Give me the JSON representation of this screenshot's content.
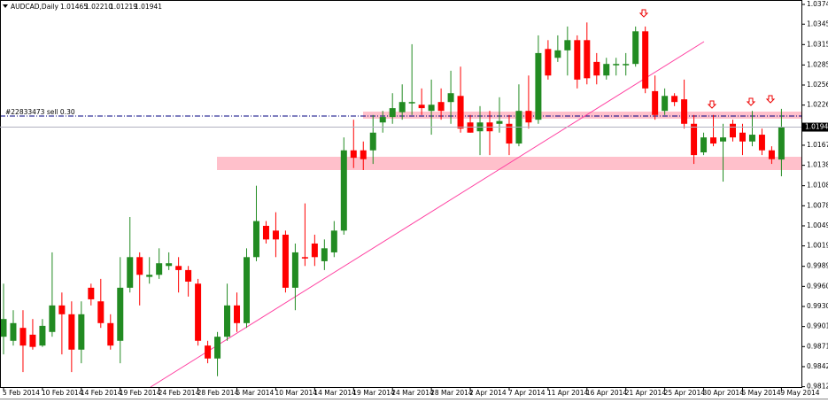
{
  "chart_data": {
    "type": "candlestick",
    "title": "AUDCAD,Daily",
    "last_bar_labels": [
      "1.01465",
      "1.02210",
      "1.01219",
      "1.01941"
    ],
    "annotations": {
      "order": "#22833473 sell 0.30"
    },
    "categories": [
      "5 Feb 2014",
      null,
      null,
      null,
      "10 Feb 2014",
      null,
      null,
      null,
      "14 Feb 2014",
      null,
      null,
      null,
      "19 Feb 2014",
      null,
      null,
      null,
      "24 Feb 2014",
      null,
      null,
      null,
      "28 Feb 2014",
      null,
      null,
      null,
      "5 Mar 2014",
      null,
      null,
      null,
      "10 Mar 2014",
      null,
      null,
      null,
      "14 Mar 2014",
      null,
      null,
      null,
      "19 Mar 2014",
      null,
      null,
      null,
      "24 Mar 2014",
      null,
      null,
      null,
      "28 Mar 2014",
      null,
      null,
      null,
      "2 Apr 2014",
      null,
      null,
      null,
      "7 Apr 2014",
      null,
      null,
      null,
      "11 Apr 2014",
      null,
      null,
      null,
      "16 Apr 2014",
      null,
      null,
      null,
      "21 Apr 2014",
      null,
      null,
      null,
      "25 Apr 2014",
      null,
      null,
      null,
      "30 Apr 2014",
      null,
      null,
      null,
      "5 May 2014",
      null,
      null,
      null,
      "9 May 2014"
    ],
    "series": [
      {
        "up_color": "#228b22",
        "down_color": "#ff0000",
        "open": [
          0.9886,
          0.988,
          0.9899,
          0.9889,
          0.9873,
          0.9893,
          0.9932,
          0.9919,
          0.9867,
          0.9958,
          0.9938,
          0.9906,
          0.988,
          0.9958,
          1.0003,
          0.9974,
          0.9977,
          0.999,
          0.999,
          0.9984,
          0.9964,
          0.9873,
          0.9854,
          0.9886,
          0.9932,
          0.9906,
          1.0003,
          1.0049,
          1.0042,
          1.0036,
          0.9958,
          1.0003,
          1.0023,
          0.9997,
          1.001,
          1.0042,
          1.016,
          1.016,
          1.016,
          1.0201,
          1.0209,
          1.0216,
          1.0229,
          1.0227,
          1.0218,
          1.0231,
          1.0231,
          1.024,
          1.0201,
          1.0188,
          1.0201,
          1.0199,
          1.0199,
          1.017,
          1.0218,
          1.0205,
          1.0309,
          1.0296,
          1.0307,
          1.0322,
          1.0322,
          1.029,
          1.027,
          1.0285,
          1.0285,
          1.0287,
          1.0335,
          1.0247,
          1.0218,
          1.024,
          1.0235,
          1.0199,
          1.0157,
          1.0179,
          1.0173,
          1.0199,
          1.0186,
          1.0173,
          1.0183,
          1.016,
          1.01465
        ],
        "high": [
          0.9964,
          0.9925,
          0.9925,
          0.9912,
          0.9912,
          1.001,
          0.9951,
          0.9938,
          0.9938,
          0.9964,
          0.9971,
          0.9919,
          1.0003,
          1.0062,
          1.001,
          1.0003,
          1.0016,
          1.001,
          1.0003,
          0.999,
          0.9971,
          0.988,
          0.9893,
          0.9964,
          0.9951,
          1.0016,
          1.0108,
          1.0056,
          1.0069,
          1.0042,
          1.0023,
          1.0082,
          1.0036,
          1.0029,
          1.0056,
          1.0179,
          1.0205,
          1.0173,
          1.0212,
          1.0218,
          1.0244,
          1.0257,
          1.0316,
          1.0251,
          1.0264,
          1.0251,
          1.0277,
          1.0283,
          1.0212,
          1.0225,
          1.0218,
          1.0238,
          1.0212,
          1.0257,
          1.027,
          1.0329,
          1.0322,
          1.0329,
          1.0342,
          1.0329,
          1.0348,
          1.0303,
          1.0296,
          1.0296,
          1.0303,
          1.0342,
          1.0342,
          1.027,
          1.0251,
          1.0244,
          1.0264,
          1.0212,
          1.0186,
          1.0212,
          1.0199,
          1.0205,
          1.0199,
          1.0218,
          1.0192,
          1.0166,
          1.0221
        ],
        "low": [
          0.986,
          0.9873,
          0.9834,
          0.9867,
          0.9871,
          0.9886,
          0.986,
          0.9834,
          0.9847,
          0.9932,
          0.9899,
          0.9867,
          0.9847,
          0.9951,
          0.9932,
          0.9964,
          0.9971,
          0.9984,
          0.9951,
          0.9945,
          0.9873,
          0.9847,
          0.9828,
          0.988,
          0.9893,
          0.9899,
          0.9997,
          1.0023,
          1.0003,
          0.9951,
          0.9925,
          0.999,
          0.999,
          0.9984,
          1.0003,
          1.0036,
          1.0134,
          1.0131,
          1.014,
          1.0186,
          1.0199,
          1.0205,
          1.0212,
          1.0212,
          1.0183,
          1.0205,
          1.0199,
          1.0186,
          1.0186,
          1.0153,
          1.0153,
          1.0186,
          1.0153,
          1.0166,
          1.0192,
          1.0199,
          1.0264,
          1.029,
          1.027,
          1.0251,
          1.0257,
          1.0257,
          1.0264,
          1.027,
          1.027,
          1.0283,
          1.0244,
          1.0205,
          1.0212,
          1.0225,
          1.0192,
          1.014,
          1.0153,
          1.0166,
          1.0114,
          1.0173,
          1.0153,
          1.0166,
          1.0153,
          1.014,
          1.01219
        ],
        "close": [
          0.9912,
          0.9906,
          0.9873,
          0.9871,
          0.9902,
          0.9932,
          0.9919,
          0.9867,
          0.9919,
          0.9941,
          0.9906,
          0.9873,
          0.9958,
          1.0003,
          0.9977,
          0.9977,
          0.9994,
          0.9994,
          0.9984,
          0.9967,
          0.988,
          0.9854,
          0.9886,
          0.9932,
          0.9906,
          1.0003,
          1.0056,
          1.0029,
          1.0029,
          0.9958,
          1.001,
          1.0001,
          1.0003,
          1.0016,
          1.0042,
          1.016,
          1.0149,
          1.0147,
          1.0186,
          1.0209,
          1.0222,
          1.0231,
          1.0231,
          1.0222,
          1.0227,
          1.0218,
          1.0244,
          1.0192,
          1.0186,
          1.0201,
          1.0188,
          1.0203,
          1.017,
          1.0218,
          1.0201,
          1.0303,
          1.027,
          1.0307,
          1.0322,
          1.0264,
          1.0266,
          1.027,
          1.0287,
          1.0287,
          1.0287,
          1.0335,
          1.0251,
          1.0212,
          1.024,
          1.0231,
          1.0199,
          1.0153,
          1.0179,
          1.017,
          1.0179,
          1.0179,
          1.0173,
          1.0183,
          1.016,
          1.0147,
          1.01941
        ]
      }
    ],
    "ylim": [
      0.9812,
      1.0381
    ],
    "yticks": [
      1.03745,
      1.03455,
      1.03155,
      1.02855,
      {
        "value": 1.0256,
        "label": "1.02560"
      },
      1.02265,
      1.01675,
      {
        "value": 1.0138,
        "label": "1.01380"
      },
      {
        "value": 1.0108,
        "label": "1.01080"
      },
      1.00785,
      {
        "value": 1.0049,
        "label": "1.00490"
      },
      1.00195,
      0.99895,
      {
        "value": 0.996,
        "label": "0.99600"
      },
      0.99305,
      {
        "value": 0.9901,
        "label": "0.99010"
      },
      0.98715,
      {
        "value": 0.9842,
        "label": "0.98420"
      },
      0.98125
    ],
    "grid": false
  }
}
